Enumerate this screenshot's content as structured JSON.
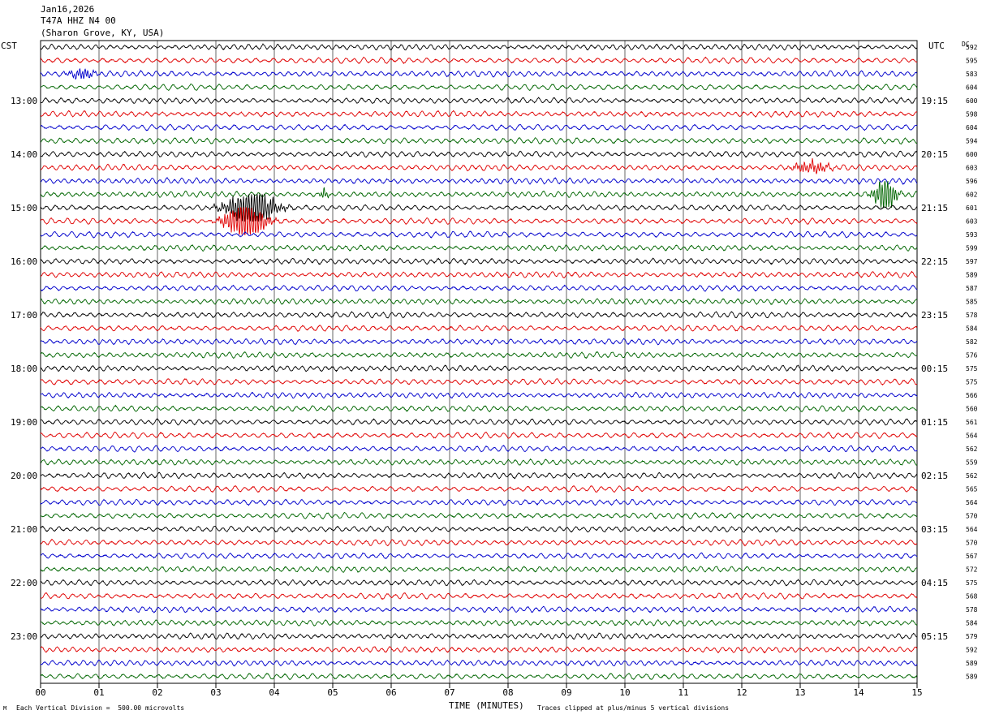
{
  "header": {
    "date": "Jan16,2026",
    "station": "T47A HHZ N4 00",
    "location": "(Sharon Grove, KY, USA)"
  },
  "left_timezone": "CST",
  "right_timezone": "UTC",
  "dc_label": "DC",
  "footer": {
    "vertical_division": "Each Vertical Division =  500.00 microvolts",
    "xlabel": "TIME (MINUTES)",
    "clip_note": "Traces clipped at plus/minus 5 vertical divisions"
  },
  "chart_data": {
    "type": "line",
    "title": "",
    "xlabel": "TIME (MINUTES)",
    "ylabel": "",
    "xlim": [
      0,
      15
    ],
    "x_ticks": [
      "00",
      "01",
      "02",
      "03",
      "04",
      "05",
      "06",
      "07",
      "08",
      "09",
      "10",
      "11",
      "12",
      "13",
      "14",
      "15"
    ],
    "grid": true,
    "trace_colors": [
      "#000000",
      "#e00000",
      "#0000cc",
      "#006600"
    ],
    "hour_labels_left": [
      "13:00",
      "14:00",
      "15:00",
      "16:00",
      "17:00",
      "18:00",
      "19:00",
      "20:00",
      "21:00",
      "22:00",
      "23:00"
    ],
    "hour_labels_right": [
      "19:15",
      "20:15",
      "21:15",
      "22:15",
      "23:15",
      "00:15",
      "01:15",
      "02:15",
      "03:15",
      "04:15",
      "05:15"
    ],
    "dc_offsets": [
      592,
      595,
      583,
      604,
      600,
      598,
      604,
      594,
      600,
      603,
      596,
      602,
      601,
      603,
      593,
      599,
      597,
      589,
      587,
      585,
      578,
      584,
      582,
      576,
      575,
      575,
      566,
      560,
      561,
      564,
      562,
      559,
      562,
      565,
      564,
      570,
      564,
      570,
      567,
      572,
      575,
      568,
      578,
      584,
      579,
      592,
      589,
      589
    ],
    "events": [
      {
        "trace": 11,
        "minute": 14.45,
        "amplitude": 2.2,
        "width": 0.25
      },
      {
        "trace": 12,
        "minute": 3.6,
        "amplitude": 2.4,
        "width": 0.55
      },
      {
        "trace": 13,
        "minute": 3.5,
        "amplitude": 2.5,
        "width": 0.45
      },
      {
        "trace": 9,
        "minute": 13.2,
        "amplitude": 0.7,
        "width": 0.4
      },
      {
        "trace": 2,
        "minute": 0.7,
        "amplitude": 0.6,
        "width": 0.3
      },
      {
        "trace": 11,
        "minute": 4.85,
        "amplitude": 0.7,
        "width": 0.1
      }
    ]
  }
}
